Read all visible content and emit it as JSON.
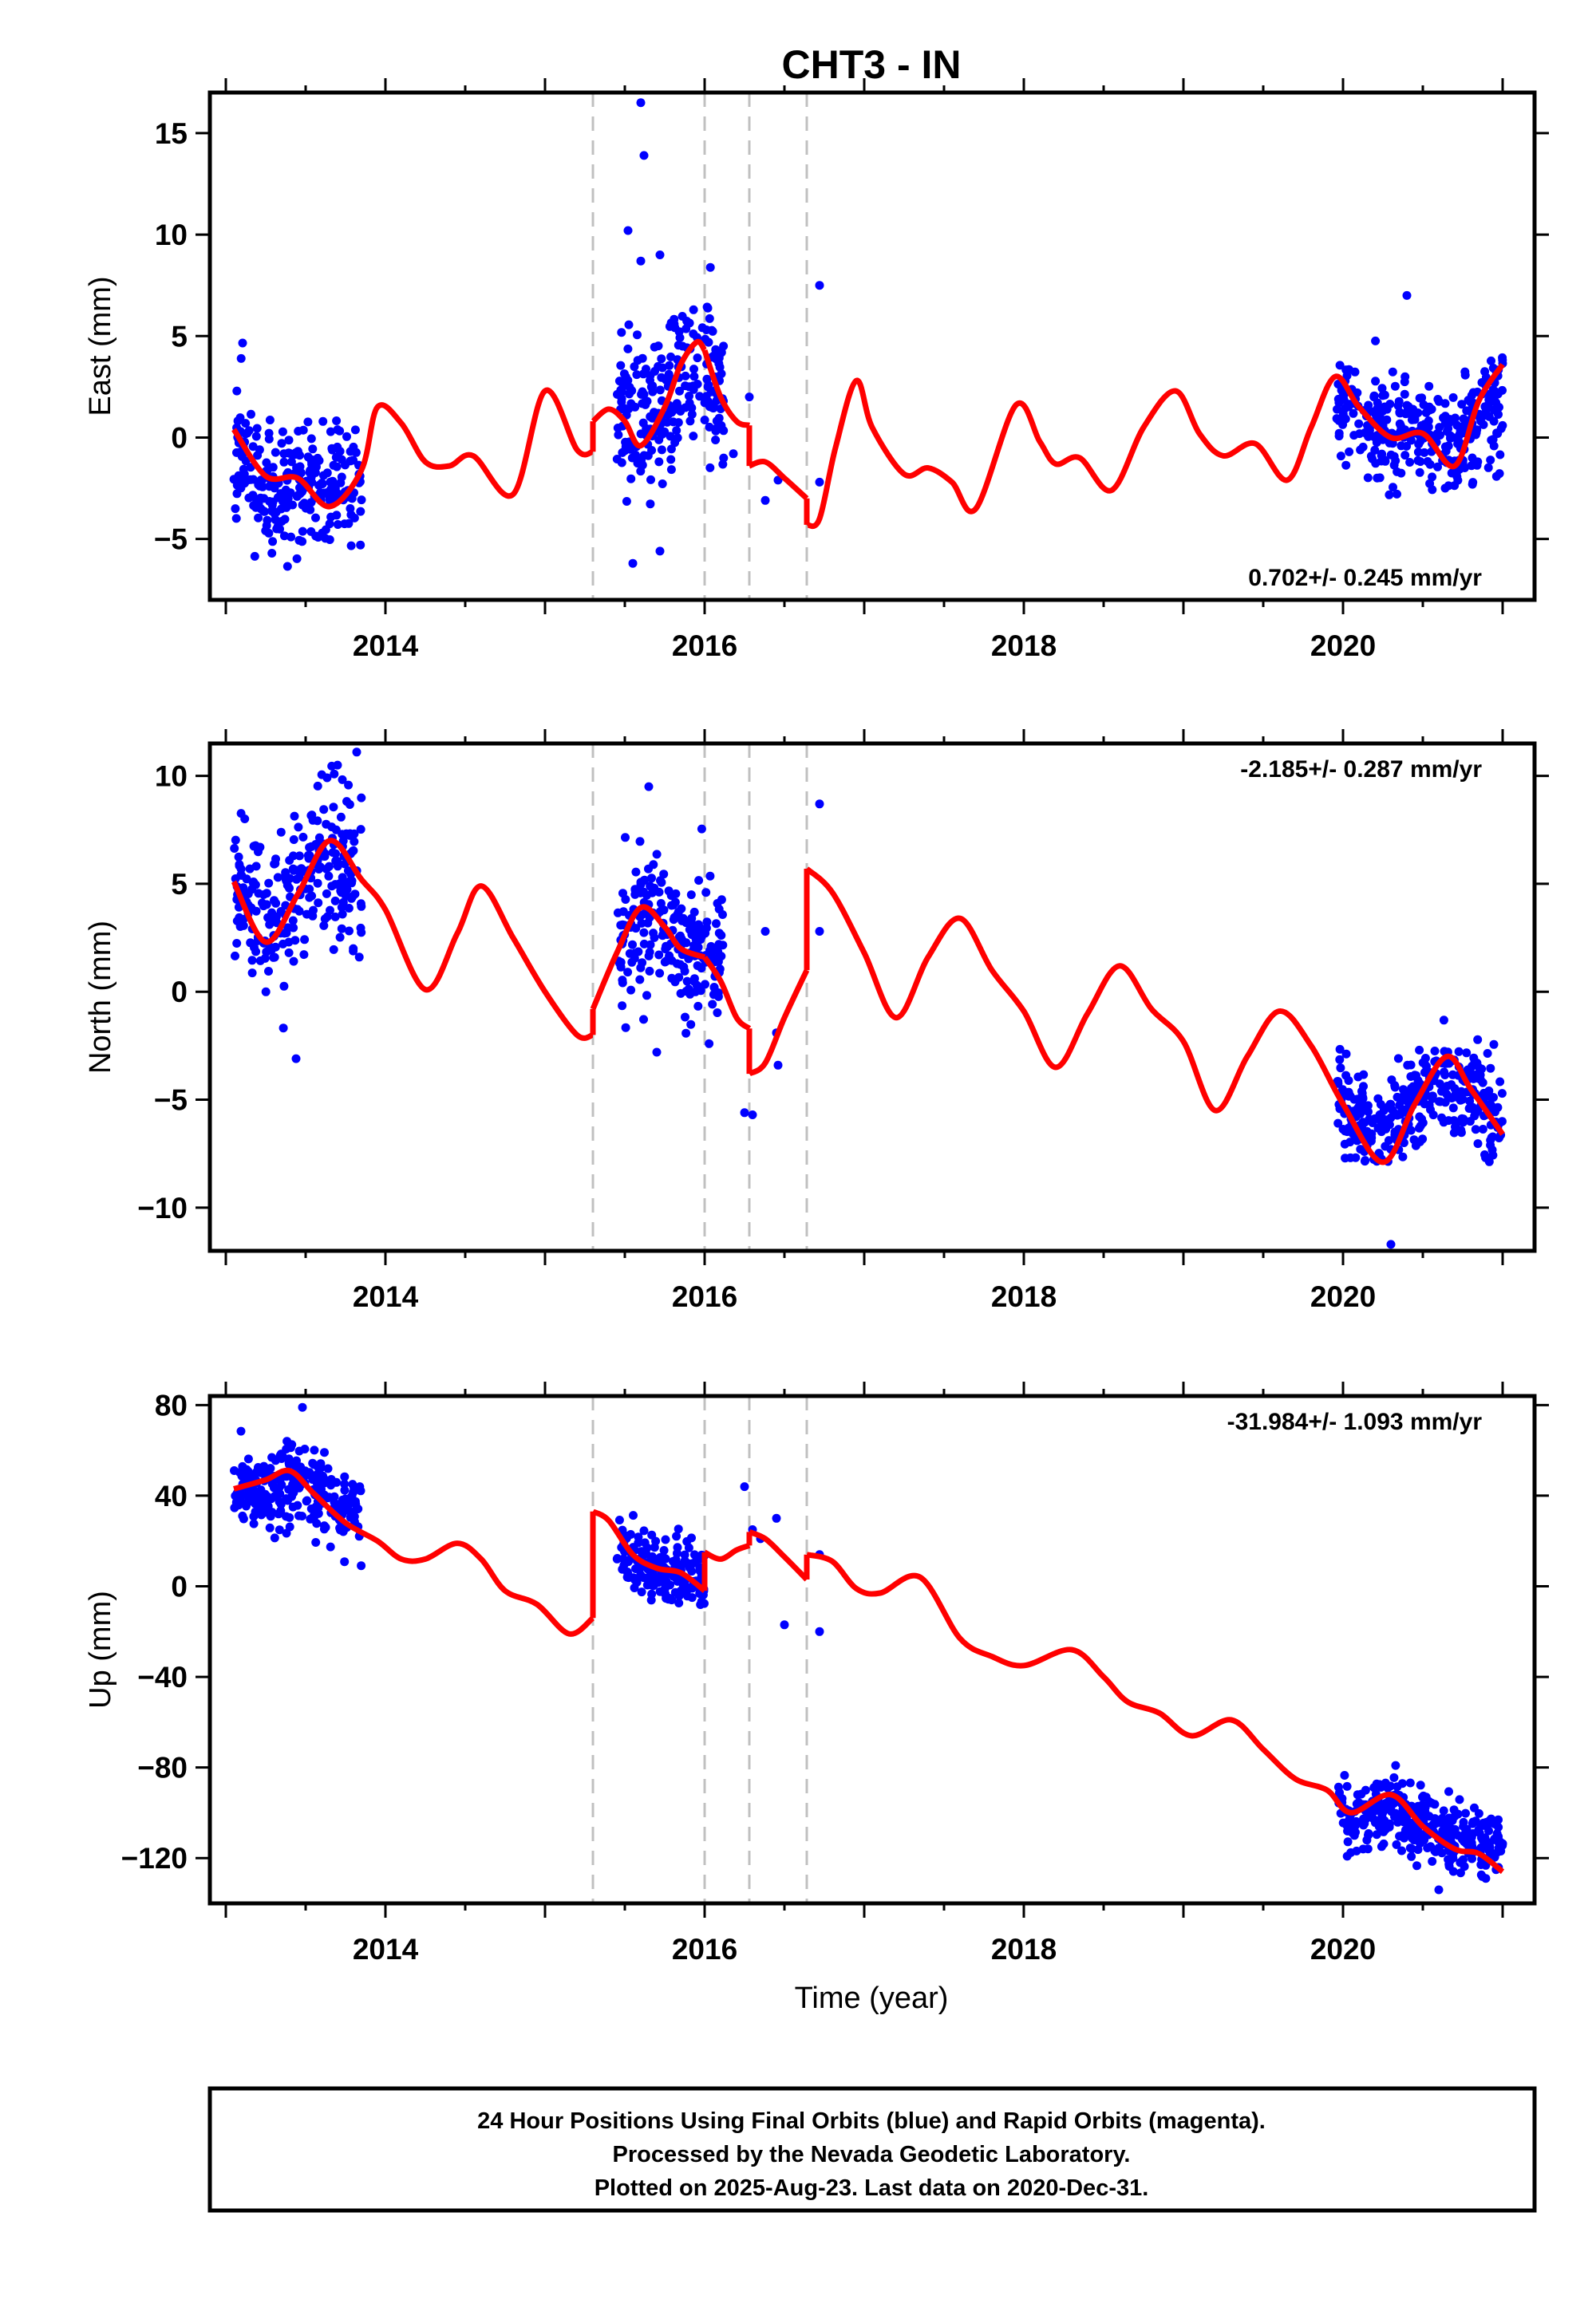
{
  "title": "CHT3 - IN",
  "x_axis_label": "Time (year)",
  "footer_lines": [
    "24 Hour Positions Using Final Orbits (blue) and Rapid Orbits (magenta).",
    "Processed by the Nevada Geodetic Laboratory.",
    "Plotted on 2025-Aug-23. Last data on 2020-Dec-31."
  ],
  "colors": {
    "points": "#0000ff",
    "model": "#ff0000",
    "breaks": "#c0c0c0",
    "frame": "#000000"
  },
  "chart_data": [
    {
      "type": "scatter",
      "panel": "east",
      "ylabel": "East (mm)",
      "rate_text": "0.702+/- 0.245 mm/yr",
      "xlim": [
        2012.9,
        2021.2
      ],
      "ylim": [
        -8,
        17
      ],
      "x_ticks": [
        2014,
        2016,
        2018,
        2020
      ],
      "y_ticks": [
        -5,
        0,
        5,
        10,
        15
      ],
      "breaks": [
        2015.3,
        2016.0,
        2016.28,
        2016.64
      ],
      "data_clusters": [
        {
          "x_range": [
            2013.05,
            2013.85
          ],
          "mean": -2.4,
          "spread": 2.2
        },
        {
          "x_range": [
            2015.45,
            2016.12
          ],
          "mean": 2.2,
          "spread": 2.6
        },
        {
          "x_range": [
            2019.96,
            2021.0
          ],
          "mean": 0.4,
          "spread": 1.8
        }
      ],
      "extra_points": [
        [
          2015.52,
          10.2
        ],
        [
          2015.6,
          8.7
        ],
        [
          2015.6,
          16.5
        ],
        [
          2015.62,
          13.9
        ],
        [
          2015.72,
          9.0
        ],
        [
          2016.18,
          -0.8
        ],
        [
          2016.28,
          2.0
        ],
        [
          2016.38,
          -3.1
        ],
        [
          2016.46,
          -2.1
        ],
        [
          2016.72,
          7.5
        ],
        [
          2016.72,
          -2.2
        ],
        [
          2020.4,
          7.0
        ],
        [
          2015.55,
          -6.2
        ],
        [
          2015.72,
          -5.6
        ]
      ],
      "model": [
        {
          "segment": [
            2013.05,
            2015.3
          ],
          "points": [
            [
              2013.05,
              0.4
            ],
            [
              2013.25,
              -1.9
            ],
            [
              2013.45,
              -2.0
            ],
            [
              2013.65,
              -3.4
            ],
            [
              2013.85,
              -1.6
            ],
            [
              2013.95,
              1.5
            ],
            [
              2014.1,
              0.7
            ],
            [
              2014.25,
              -1.2
            ],
            [
              2014.4,
              -1.4
            ],
            [
              2014.55,
              -0.9
            ],
            [
              2014.8,
              -2.8
            ],
            [
              2015.0,
              2.3
            ],
            [
              2015.2,
              -0.6
            ],
            [
              2015.3,
              -0.7
            ]
          ]
        },
        {
          "segment": [
            2015.3,
            2016.0
          ],
          "points": [
            [
              2015.3,
              0.8
            ],
            [
              2015.4,
              1.4
            ],
            [
              2015.5,
              0.8
            ],
            [
              2015.6,
              -0.4
            ],
            [
              2015.75,
              1.5
            ],
            [
              2015.85,
              3.6
            ],
            [
              2015.95,
              4.7
            ],
            [
              2016.0,
              4.3
            ]
          ]
        },
        {
          "segment": [
            2016.0,
            2016.28
          ],
          "points": [
            [
              2016.0,
              4.3
            ],
            [
              2016.1,
              2.0
            ],
            [
              2016.2,
              0.8
            ],
            [
              2016.28,
              0.6
            ]
          ]
        },
        {
          "segment": [
            2016.28,
            2016.64
          ],
          "points": [
            [
              2016.28,
              -1.4
            ],
            [
              2016.38,
              -1.2
            ],
            [
              2016.5,
              -2.0
            ],
            [
              2016.64,
              -3.0
            ]
          ]
        },
        {
          "segment": [
            2016.64,
            2021.0
          ],
          "points": [
            [
              2016.64,
              -4.3
            ],
            [
              2016.72,
              -4.0
            ],
            [
              2016.82,
              -0.5
            ],
            [
              2016.95,
              2.8
            ],
            [
              2017.05,
              0.5
            ],
            [
              2017.25,
              -1.8
            ],
            [
              2017.4,
              -1.5
            ],
            [
              2017.55,
              -2.2
            ],
            [
              2017.7,
              -3.5
            ],
            [
              2017.95,
              1.6
            ],
            [
              2018.1,
              -0.2
            ],
            [
              2018.2,
              -1.3
            ],
            [
              2018.35,
              -1.0
            ],
            [
              2018.55,
              -2.6
            ],
            [
              2018.75,
              0.5
            ],
            [
              2018.95,
              2.3
            ],
            [
              2019.1,
              0.2
            ],
            [
              2019.25,
              -0.9
            ],
            [
              2019.45,
              -0.3
            ],
            [
              2019.65,
              -2.1
            ],
            [
              2019.8,
              0.5
            ],
            [
              2019.95,
              3.0
            ],
            [
              2020.1,
              1.5
            ],
            [
              2020.3,
              0.0
            ],
            [
              2020.5,
              0.2
            ],
            [
              2020.7,
              -1.4
            ],
            [
              2020.85,
              1.8
            ],
            [
              2021.0,
              3.6
            ]
          ]
        }
      ]
    },
    {
      "type": "scatter",
      "panel": "north",
      "ylabel": "North (mm)",
      "rate_text": "-2.185+/- 0.287 mm/yr",
      "xlim": [
        2012.9,
        2021.2
      ],
      "ylim": [
        -12,
        11.5
      ],
      "x_ticks": [
        2014,
        2016,
        2018,
        2020
      ],
      "y_ticks": [
        -10,
        -5,
        0,
        5,
        10
      ],
      "breaks": [
        2015.3,
        2016.0,
        2016.28,
        2016.64
      ],
      "data_clusters": [
        {
          "x_range": [
            2013.05,
            2013.85
          ],
          "mean": 5.3,
          "spread": 2.2
        },
        {
          "x_range": [
            2015.45,
            2016.12
          ],
          "mean": 2.8,
          "spread": 2.1
        },
        {
          "x_range": [
            2019.96,
            2021.0
          ],
          "mean": -5.0,
          "spread": 1.6
        }
      ],
      "extra_points": [
        [
          2016.25,
          -5.6
        ],
        [
          2016.3,
          -5.7
        ],
        [
          2016.38,
          2.8
        ],
        [
          2016.45,
          -1.9
        ],
        [
          2016.46,
          -3.4
        ],
        [
          2016.72,
          8.7
        ],
        [
          2016.72,
          2.8
        ],
        [
          2013.44,
          -3.1
        ],
        [
          2013.7,
          10.5
        ],
        [
          2013.82,
          11.1
        ],
        [
          2015.65,
          9.5
        ],
        [
          2015.7,
          -2.8
        ],
        [
          2020.3,
          -11.7
        ]
      ],
      "model": [
        {
          "segment": [
            2013.05,
            2015.3
          ],
          "points": [
            [
              2013.05,
              5.1
            ],
            [
              2013.25,
              2.3
            ],
            [
              2013.45,
              4.5
            ],
            [
              2013.65,
              7.0
            ],
            [
              2013.85,
              5.2
            ],
            [
              2014.0,
              3.8
            ],
            [
              2014.25,
              0.1
            ],
            [
              2014.45,
              2.7
            ],
            [
              2014.6,
              4.9
            ],
            [
              2014.8,
              2.5
            ],
            [
              2015.0,
              0.0
            ],
            [
              2015.2,
              -2.0
            ],
            [
              2015.3,
              -2.0
            ]
          ]
        },
        {
          "segment": [
            2015.3,
            2016.0
          ],
          "points": [
            [
              2015.3,
              -0.8
            ],
            [
              2015.45,
              1.8
            ],
            [
              2015.6,
              3.9
            ],
            [
              2015.75,
              3.0
            ],
            [
              2015.85,
              2.0
            ],
            [
              2016.0,
              1.6
            ]
          ]
        },
        {
          "segment": [
            2016.0,
            2016.28
          ],
          "points": [
            [
              2016.0,
              1.6
            ],
            [
              2016.1,
              0.5
            ],
            [
              2016.2,
              -1.2
            ],
            [
              2016.28,
              -1.7
            ]
          ]
        },
        {
          "segment": [
            2016.28,
            2016.64
          ],
          "points": [
            [
              2016.28,
              -3.8
            ],
            [
              2016.38,
              -3.3
            ],
            [
              2016.5,
              -1.2
            ],
            [
              2016.64,
              1.0
            ]
          ]
        },
        {
          "segment": [
            2016.64,
            2021.0
          ],
          "points": [
            [
              2016.64,
              5.7
            ],
            [
              2016.8,
              4.6
            ],
            [
              2017.0,
              1.8
            ],
            [
              2017.2,
              -1.2
            ],
            [
              2017.4,
              1.6
            ],
            [
              2017.6,
              3.4
            ],
            [
              2017.8,
              1.0
            ],
            [
              2018.0,
              -0.9
            ],
            [
              2018.2,
              -3.5
            ],
            [
              2018.4,
              -1.0
            ],
            [
              2018.6,
              1.2
            ],
            [
              2018.8,
              -0.8
            ],
            [
              2019.0,
              -2.3
            ],
            [
              2019.2,
              -5.5
            ],
            [
              2019.4,
              -3.0
            ],
            [
              2019.6,
              -0.9
            ],
            [
              2019.8,
              -2.5
            ],
            [
              2020.0,
              -5.2
            ],
            [
              2020.25,
              -7.9
            ],
            [
              2020.45,
              -5.2
            ],
            [
              2020.65,
              -3.0
            ],
            [
              2020.8,
              -4.5
            ],
            [
              2021.0,
              -6.6
            ]
          ]
        }
      ]
    },
    {
      "type": "scatter",
      "panel": "up",
      "ylabel": "Up (mm)",
      "rate_text": "-31.984+/- 1.093 mm/yr",
      "xlim": [
        2012.9,
        2021.2
      ],
      "ylim": [
        -140,
        84
      ],
      "x_ticks": [
        2014,
        2016,
        2018,
        2020
      ],
      "y_ticks": [
        -120,
        -80,
        -40,
        0,
        40,
        80
      ],
      "breaks": [
        2015.3,
        2016.0,
        2016.28,
        2016.64
      ],
      "data_clusters": [
        {
          "x_range": [
            2013.05,
            2013.85
          ],
          "mean": 38,
          "spread": 12
        },
        {
          "x_range": [
            2015.45,
            2016.0
          ],
          "mean": 7,
          "spread": 9
        },
        {
          "x_range": [
            2019.96,
            2021.0
          ],
          "mean": -105,
          "spread": 10
        }
      ],
      "extra_points": [
        [
          2016.25,
          44
        ],
        [
          2016.3,
          25
        ],
        [
          2016.35,
          21
        ],
        [
          2016.45,
          30
        ],
        [
          2016.5,
          -17
        ],
        [
          2016.72,
          14
        ],
        [
          2016.72,
          -20
        ],
        [
          2013.48,
          79
        ],
        [
          2020.6,
          -134
        ]
      ],
      "model": [
        {
          "segment": [
            2013.05,
            2015.3
          ],
          "points": [
            [
              2013.05,
              43
            ],
            [
              2013.25,
              47
            ],
            [
              2013.4,
              51
            ],
            [
              2013.55,
              41
            ],
            [
              2013.75,
              28
            ],
            [
              2013.95,
              20
            ],
            [
              2014.1,
              12
            ],
            [
              2014.25,
              12
            ],
            [
              2014.45,
              19
            ],
            [
              2014.6,
              12
            ],
            [
              2014.75,
              -2
            ],
            [
              2014.95,
              -8
            ],
            [
              2015.15,
              -21
            ],
            [
              2015.3,
              -14
            ]
          ]
        },
        {
          "segment": [
            2015.3,
            2016.0
          ],
          "points": [
            [
              2015.3,
              33
            ],
            [
              2015.4,
              29
            ],
            [
              2015.55,
              14
            ],
            [
              2015.7,
              8
            ],
            [
              2015.85,
              6
            ],
            [
              2016.0,
              -2
            ]
          ]
        },
        {
          "segment": [
            2016.0,
            2016.28
          ],
          "points": [
            [
              2016.0,
              15
            ],
            [
              2016.1,
              12
            ],
            [
              2016.2,
              16
            ],
            [
              2016.28,
              18
            ]
          ]
        },
        {
          "segment": [
            2016.28,
            2016.64
          ],
          "points": [
            [
              2016.28,
              24
            ],
            [
              2016.38,
              21
            ],
            [
              2016.5,
              13
            ],
            [
              2016.64,
              3
            ]
          ]
        },
        {
          "segment": [
            2016.64,
            2021.0
          ],
          "points": [
            [
              2016.64,
              14
            ],
            [
              2016.8,
              11
            ],
            [
              2016.95,
              -1
            ],
            [
              2017.1,
              -3
            ],
            [
              2017.35,
              4
            ],
            [
              2017.6,
              -23
            ],
            [
              2017.8,
              -31
            ],
            [
              2018.0,
              -35
            ],
            [
              2018.3,
              -28
            ],
            [
              2018.5,
              -40
            ],
            [
              2018.65,
              -51
            ],
            [
              2018.85,
              -56
            ],
            [
              2019.05,
              -66
            ],
            [
              2019.3,
              -59
            ],
            [
              2019.5,
              -72
            ],
            [
              2019.7,
              -85
            ],
            [
              2019.9,
              -90
            ],
            [
              2020.05,
              -100
            ],
            [
              2020.3,
              -92
            ],
            [
              2020.5,
              -106
            ],
            [
              2020.7,
              -116
            ],
            [
              2020.85,
              -118
            ],
            [
              2021.0,
              -126
            ]
          ]
        }
      ]
    }
  ]
}
